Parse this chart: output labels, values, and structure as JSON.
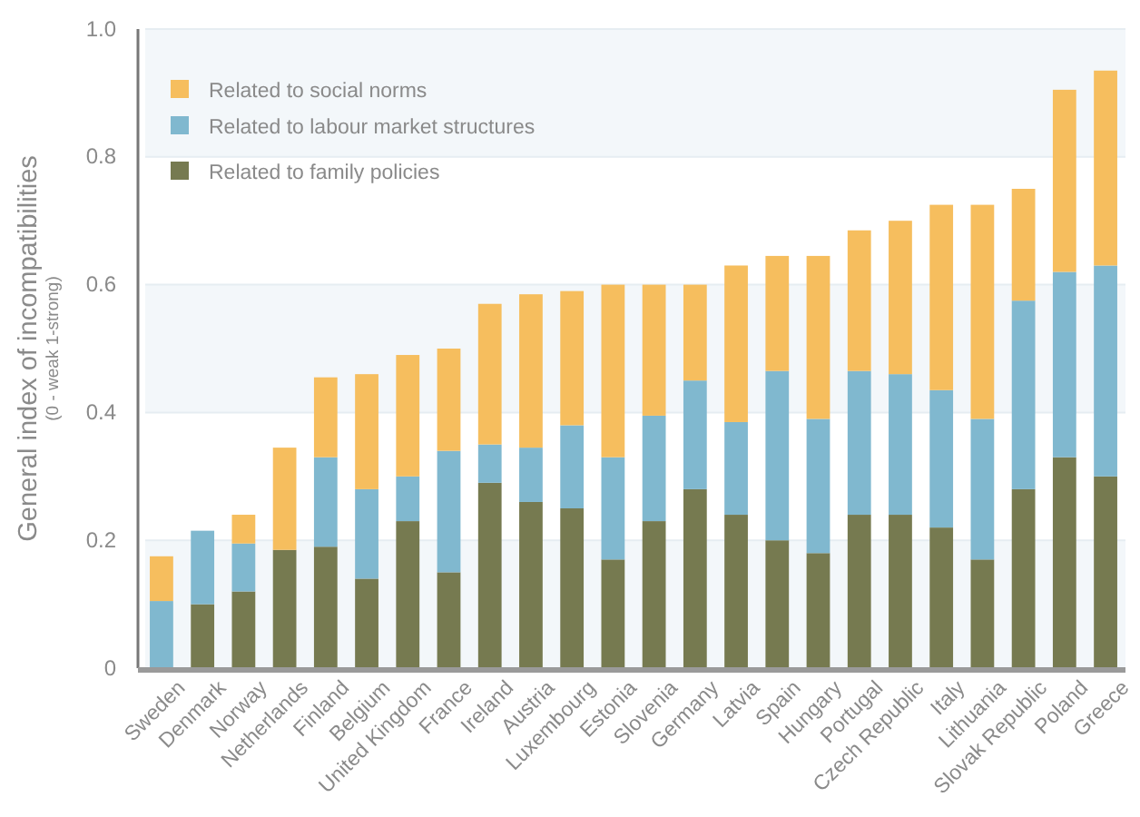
{
  "chart_data": {
    "type": "bar",
    "stacked": true,
    "ylabel": "General index of incompatibilities $_{(0 - weak 1-strong)}$",
    "categories": [
      "Sweden",
      "Denmark",
      "Norway",
      "Netherlands",
      "Finland",
      "Belgium",
      "United Kingdom",
      "France",
      "Ireland",
      "Austria",
      "Luxembourg",
      "Estonia",
      "Slovenia",
      "Germany",
      "Latvia",
      "Spain",
      "Hungary",
      "Portugal",
      "Czech Republic",
      "Italy",
      "Lithuania",
      "Slovak Republic",
      "Poland",
      "Greece"
    ],
    "series": [
      {
        "name": "Related to family policies",
        "color": "#767a50",
        "values": [
          null,
          0.1,
          0.12,
          0.185,
          0.19,
          0.14,
          0.23,
          0.15,
          0.29,
          0.26,
          0.25,
          0.17,
          0.23,
          0.28,
          0.24,
          0.2,
          0.18,
          0.24,
          0.24,
          0.22,
          0.17,
          0.28,
          0.33,
          0.3
        ]
      },
      {
        "name": "Related to labour market structures",
        "color": "#80b8cf",
        "values": [
          0.105,
          0.115,
          0.075,
          null,
          0.14,
          0.14,
          0.07,
          0.19,
          0.06,
          0.085,
          0.13,
          0.16,
          0.165,
          0.17,
          0.145,
          0.265,
          0.21,
          0.225,
          0.22,
          0.215,
          0.22,
          0.295,
          0.29,
          0.33
        ]
      },
      {
        "name": "Related to social norms",
        "color": "#f6be5e",
        "values": [
          0.07,
          null,
          0.045,
          0.16,
          0.125,
          0.18,
          0.19,
          0.16,
          0.22,
          0.24,
          0.21,
          0.27,
          0.205,
          0.15,
          0.245,
          0.18,
          0.255,
          0.22,
          0.24,
          0.29,
          0.335,
          0.175,
          0.285,
          0.305
        ]
      }
    ],
    "ylim": [
      0,
      1
    ],
    "yticks": [
      {
        "value": 0,
        "label": "0"
      },
      0.2,
      0.4,
      0.6,
      0.8,
      {
        "value": 1,
        "label": "1.0"
      }
    ],
    "grid": "y",
    "legend": "top left"
  }
}
